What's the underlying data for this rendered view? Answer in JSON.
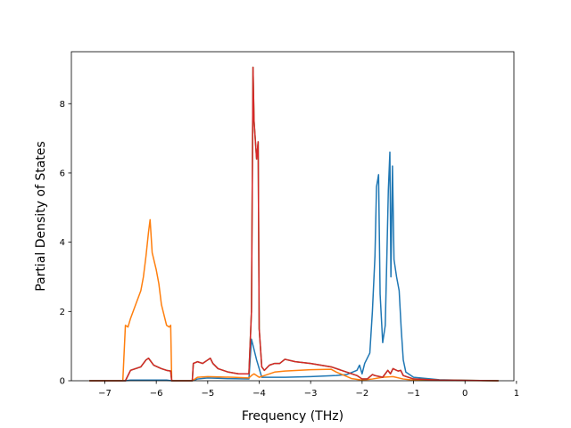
{
  "chart_data": {
    "type": "line",
    "title": "",
    "xlabel": "Frequency (THz)",
    "ylabel": "Partial Density of States",
    "xlim": [
      -7.65,
      0.95
    ],
    "ylim": [
      0,
      9.5
    ],
    "xticks": [
      -7,
      -6,
      -5,
      -4,
      -3,
      -2,
      -1,
      0,
      1
    ],
    "yticks": [
      0,
      2,
      4,
      6,
      8
    ],
    "grid": false,
    "legend": "none",
    "series": [
      {
        "color": "#1f77b4",
        "points": [
          [
            -7.3,
            0
          ],
          [
            -6.6,
            0
          ],
          [
            -6.5,
            0.02
          ],
          [
            -5.8,
            0.02
          ],
          [
            -5.7,
            0
          ],
          [
            -5.3,
            0
          ],
          [
            -5.2,
            0.05
          ],
          [
            -5.0,
            0.08
          ],
          [
            -4.6,
            0.06
          ],
          [
            -4.2,
            0.05
          ],
          [
            -4.15,
            1.2
          ],
          [
            -4.05,
            0.6
          ],
          [
            -3.95,
            0.1
          ],
          [
            -3.5,
            0.1
          ],
          [
            -3.0,
            0.12
          ],
          [
            -2.5,
            0.15
          ],
          [
            -2.3,
            0.18
          ],
          [
            -2.1,
            0.3
          ],
          [
            -2.05,
            0.45
          ],
          [
            -2.0,
            0.2
          ],
          [
            -1.95,
            0.5
          ],
          [
            -1.85,
            0.8
          ],
          [
            -1.8,
            2.0
          ],
          [
            -1.75,
            3.6
          ],
          [
            -1.72,
            5.6
          ],
          [
            -1.68,
            5.95
          ],
          [
            -1.65,
            2.5
          ],
          [
            -1.6,
            1.1
          ],
          [
            -1.55,
            1.6
          ],
          [
            -1.52,
            3.5
          ],
          [
            -1.49,
            5.5
          ],
          [
            -1.46,
            6.6
          ],
          [
            -1.44,
            3.0
          ],
          [
            -1.41,
            6.2
          ],
          [
            -1.38,
            3.5
          ],
          [
            -1.33,
            3.0
          ],
          [
            -1.28,
            2.6
          ],
          [
            -1.24,
            1.5
          ],
          [
            -1.2,
            0.6
          ],
          [
            -1.15,
            0.25
          ],
          [
            -1.0,
            0.1
          ],
          [
            -0.5,
            0.03
          ],
          [
            0.0,
            0.01
          ],
          [
            0.65,
            0
          ]
        ]
      },
      {
        "color": "#ff7f0e",
        "points": [
          [
            -7.3,
            0
          ],
          [
            -6.65,
            0
          ],
          [
            -6.6,
            1.6
          ],
          [
            -6.55,
            1.55
          ],
          [
            -6.5,
            1.8
          ],
          [
            -6.4,
            2.2
          ],
          [
            -6.3,
            2.6
          ],
          [
            -6.25,
            3.0
          ],
          [
            -6.2,
            3.6
          ],
          [
            -6.15,
            4.3
          ],
          [
            -6.12,
            4.65
          ],
          [
            -6.08,
            3.7
          ],
          [
            -6.0,
            3.2
          ],
          [
            -5.95,
            2.8
          ],
          [
            -5.9,
            2.2
          ],
          [
            -5.85,
            1.9
          ],
          [
            -5.8,
            1.6
          ],
          [
            -5.75,
            1.55
          ],
          [
            -5.72,
            1.6
          ],
          [
            -5.7,
            0
          ],
          [
            -5.3,
            0
          ],
          [
            -5.2,
            0.1
          ],
          [
            -5.0,
            0.12
          ],
          [
            -4.5,
            0.1
          ],
          [
            -4.2,
            0.08
          ],
          [
            -4.15,
            0.15
          ],
          [
            -4.1,
            0.2
          ],
          [
            -4.0,
            0.1
          ],
          [
            -3.9,
            0.15
          ],
          [
            -3.7,
            0.25
          ],
          [
            -3.5,
            0.28
          ],
          [
            -3.0,
            0.32
          ],
          [
            -2.6,
            0.33
          ],
          [
            -2.5,
            0.25
          ],
          [
            -2.2,
            0.06
          ],
          [
            -2.0,
            0.02
          ],
          [
            -1.8,
            0.05
          ],
          [
            -1.6,
            0.1
          ],
          [
            -1.4,
            0.12
          ],
          [
            -1.2,
            0.05
          ],
          [
            -1.0,
            0.02
          ],
          [
            -0.5,
            0.01
          ],
          [
            0.65,
            0
          ]
        ]
      },
      {
        "color": "#2ca02c",
        "points": [
          [
            -7.3,
            0
          ],
          [
            -6.6,
            0
          ],
          [
            -6.5,
            0.3
          ],
          [
            -6.3,
            0.4
          ],
          [
            -6.2,
            0.6
          ],
          [
            -6.15,
            0.65
          ],
          [
            -6.05,
            0.45
          ],
          [
            -5.9,
            0.35
          ],
          [
            -5.8,
            0.3
          ],
          [
            -5.72,
            0.28
          ],
          [
            -5.7,
            0
          ],
          [
            -5.3,
            0
          ],
          [
            -5.28,
            0.5
          ],
          [
            -5.2,
            0.55
          ],
          [
            -5.1,
            0.5
          ],
          [
            -5.0,
            0.6
          ],
          [
            -4.95,
            0.65
          ],
          [
            -4.9,
            0.5
          ],
          [
            -4.8,
            0.35
          ],
          [
            -4.6,
            0.25
          ],
          [
            -4.4,
            0.2
          ],
          [
            -4.2,
            0.2
          ],
          [
            -4.15,
            2.0
          ],
          [
            -4.12,
            9.05
          ],
          [
            -4.1,
            7.5
          ],
          [
            -4.05,
            6.4
          ],
          [
            -4.02,
            6.9
          ],
          [
            -4.0,
            1.5
          ],
          [
            -3.95,
            0.4
          ],
          [
            -3.9,
            0.3
          ],
          [
            -3.8,
            0.45
          ],
          [
            -3.7,
            0.5
          ],
          [
            -3.6,
            0.5
          ],
          [
            -3.5,
            0.62
          ],
          [
            -3.3,
            0.55
          ],
          [
            -3.0,
            0.5
          ],
          [
            -2.6,
            0.4
          ],
          [
            -2.3,
            0.25
          ],
          [
            -2.1,
            0.15
          ],
          [
            -2.0,
            0.05
          ],
          [
            -1.9,
            0.05
          ],
          [
            -1.8,
            0.18
          ],
          [
            -1.75,
            0.15
          ],
          [
            -1.6,
            0.1
          ],
          [
            -1.5,
            0.3
          ],
          [
            -1.45,
            0.2
          ],
          [
            -1.4,
            0.35
          ],
          [
            -1.3,
            0.28
          ],
          [
            -1.25,
            0.3
          ],
          [
            -1.2,
            0.15
          ],
          [
            -1.0,
            0.05
          ],
          [
            -0.5,
            0.02
          ],
          [
            0.65,
            0
          ]
        ]
      },
      {
        "color": "#d62728",
        "points": [
          [
            -7.3,
            0
          ],
          [
            -6.6,
            0
          ],
          [
            -6.5,
            0.3
          ],
          [
            -6.3,
            0.4
          ],
          [
            -6.2,
            0.6
          ],
          [
            -6.15,
            0.65
          ],
          [
            -6.05,
            0.45
          ],
          [
            -5.9,
            0.35
          ],
          [
            -5.8,
            0.3
          ],
          [
            -5.72,
            0.28
          ],
          [
            -5.7,
            0
          ],
          [
            -5.3,
            0
          ],
          [
            -5.28,
            0.5
          ],
          [
            -5.2,
            0.55
          ],
          [
            -5.1,
            0.5
          ],
          [
            -5.0,
            0.6
          ],
          [
            -4.95,
            0.65
          ],
          [
            -4.9,
            0.5
          ],
          [
            -4.8,
            0.35
          ],
          [
            -4.6,
            0.25
          ],
          [
            -4.4,
            0.2
          ],
          [
            -4.2,
            0.2
          ],
          [
            -4.15,
            2.0
          ],
          [
            -4.12,
            9.05
          ],
          [
            -4.1,
            7.5
          ],
          [
            -4.05,
            6.4
          ],
          [
            -4.02,
            6.9
          ],
          [
            -4.0,
            1.5
          ],
          [
            -3.95,
            0.4
          ],
          [
            -3.9,
            0.3
          ],
          [
            -3.8,
            0.45
          ],
          [
            -3.7,
            0.5
          ],
          [
            -3.6,
            0.5
          ],
          [
            -3.5,
            0.62
          ],
          [
            -3.3,
            0.55
          ],
          [
            -3.0,
            0.5
          ],
          [
            -2.6,
            0.4
          ],
          [
            -2.3,
            0.25
          ],
          [
            -2.1,
            0.15
          ],
          [
            -2.0,
            0.05
          ],
          [
            -1.9,
            0.05
          ],
          [
            -1.8,
            0.18
          ],
          [
            -1.75,
            0.15
          ],
          [
            -1.6,
            0.1
          ],
          [
            -1.5,
            0.3
          ],
          [
            -1.45,
            0.2
          ],
          [
            -1.4,
            0.35
          ],
          [
            -1.3,
            0.28
          ],
          [
            -1.25,
            0.3
          ],
          [
            -1.2,
            0.15
          ],
          [
            -1.0,
            0.05
          ],
          [
            -0.5,
            0.02
          ],
          [
            0.65,
            0
          ]
        ]
      }
    ]
  }
}
